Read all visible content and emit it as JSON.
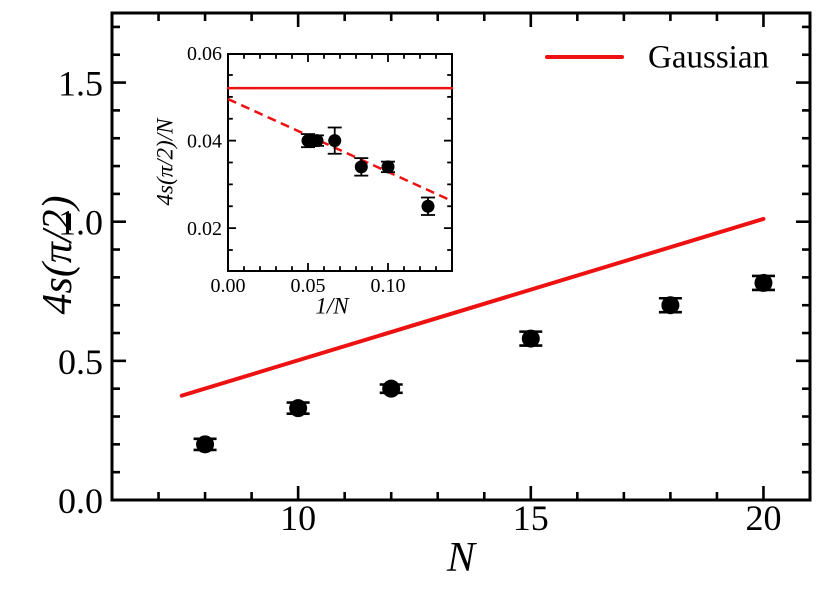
{
  "colors": {
    "background": "#ffffff",
    "accent_red": "#ee1111",
    "marker_black": "#000000"
  },
  "legend": {
    "label": "Gaussian"
  },
  "chart_data": [
    {
      "type": "scatter",
      "name": "main",
      "title": "",
      "xlabel": "N",
      "ylabel": "4s(π/2)",
      "xlim": [
        6,
        21
      ],
      "ylim": [
        0,
        1.75
      ],
      "x_major_ticks": [
        10,
        15,
        20
      ],
      "x_tick_labels": [
        "10",
        "15",
        "20"
      ],
      "x_minor_step": 1,
      "y_major_ticks": [
        0.0,
        0.5,
        1.0,
        1.5
      ],
      "y_tick_labels": [
        "0.0",
        "0.5",
        "1.0",
        "1.5"
      ],
      "y_minor_step": 0.1,
      "grid": false,
      "legend_position": "top-right",
      "series": [
        {
          "name": "measured-contrast",
          "type": "scatter",
          "marker": "circle",
          "color": "#000000",
          "x": [
            8,
            10,
            12,
            15,
            18,
            20
          ],
          "y": [
            0.2,
            0.33,
            0.4,
            0.58,
            0.7,
            0.78
          ],
          "yerr": [
            0.02,
            0.02,
            0.015,
            0.025,
            0.025,
            0.025
          ]
        },
        {
          "name": "Gaussian",
          "type": "line",
          "style": "solid",
          "color": "#ee1111",
          "x": [
            7.5,
            20
          ],
          "y": [
            0.375,
            1.01
          ]
        }
      ]
    },
    {
      "type": "scatter",
      "name": "inset",
      "title": "",
      "xlabel": "1/N",
      "ylabel": "4s(π/2)/N",
      "xlim": [
        0,
        0.14
      ],
      "ylim": [
        0.0102,
        0.0598
      ],
      "x_major_ticks": [
        0.0,
        0.05,
        0.1
      ],
      "x_tick_labels": [
        "0.00",
        "0.05",
        "0.10"
      ],
      "x_minor_step": 0.01,
      "y_major_ticks": [
        0.02,
        0.04,
        0.06
      ],
      "y_tick_labels": [
        "0.02",
        "0.04",
        "0.06"
      ],
      "y_minor_step": 0.005,
      "grid": false,
      "series": [
        {
          "name": "measured-contrast-per-N",
          "type": "scatter",
          "marker": "circle",
          "color": "#000000",
          "x": [
            0.05,
            0.0556,
            0.0667,
            0.0833,
            0.1,
            0.125
          ],
          "y": [
            0.04,
            0.04,
            0.04,
            0.034,
            0.034,
            0.025
          ],
          "yerr": [
            0.0015,
            0.0012,
            0.003,
            0.002,
            0.0012,
            0.002
          ]
        },
        {
          "name": "gaussian-limit",
          "type": "line",
          "style": "solid",
          "color": "#ee1111",
          "x": [
            0,
            0.14
          ],
          "y": [
            0.052,
            0.052
          ]
        },
        {
          "name": "linear-extrapolation",
          "type": "line",
          "style": "dashed",
          "color": "#ee1111",
          "x": [
            0,
            0.14
          ],
          "y": [
            0.0495,
            0.0262
          ]
        }
      ]
    }
  ]
}
